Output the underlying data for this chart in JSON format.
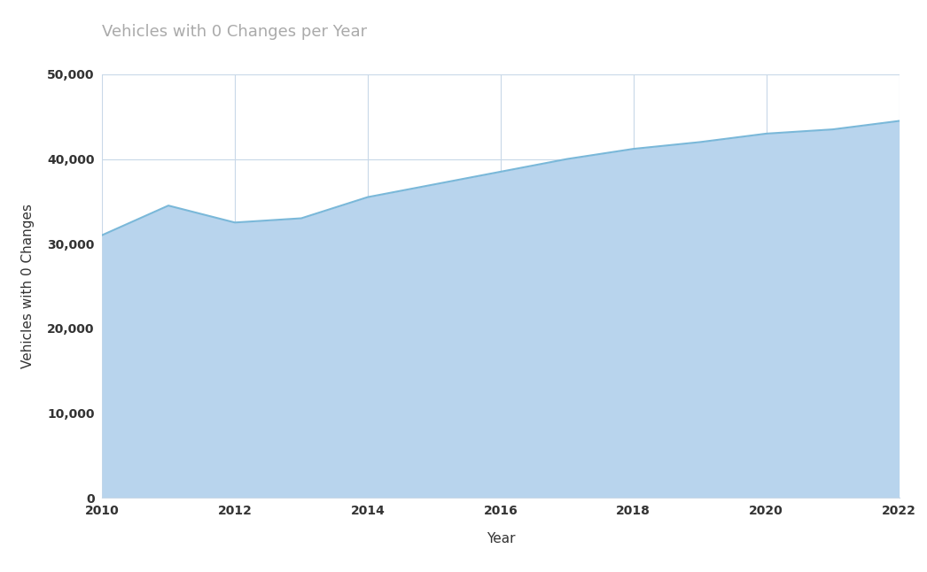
{
  "title": "Vehicles with 0 Changes per Year",
  "xlabel": "Year",
  "ylabel": "Vehicles with 0 Changes",
  "years": [
    2010,
    2011,
    2012,
    2013,
    2014,
    2015,
    2016,
    2017,
    2018,
    2019,
    2020,
    2021,
    2022
  ],
  "values": [
    31000,
    34500,
    32500,
    33000,
    35500,
    37000,
    38500,
    40000,
    41200,
    42000,
    43000,
    43500,
    44500
  ],
  "line_color": "#7ab8d9",
  "fill_color": "#b8d4ed",
  "background_color": "#ffffff",
  "grid_color": "#c8d8e8",
  "title_color": "#aaaaaa",
  "title_fontsize": 13,
  "axis_label_fontsize": 11,
  "tick_fontsize": 10,
  "ylim": [
    0,
    50000
  ],
  "ytick_step": 10000,
  "xtick_step": 2
}
